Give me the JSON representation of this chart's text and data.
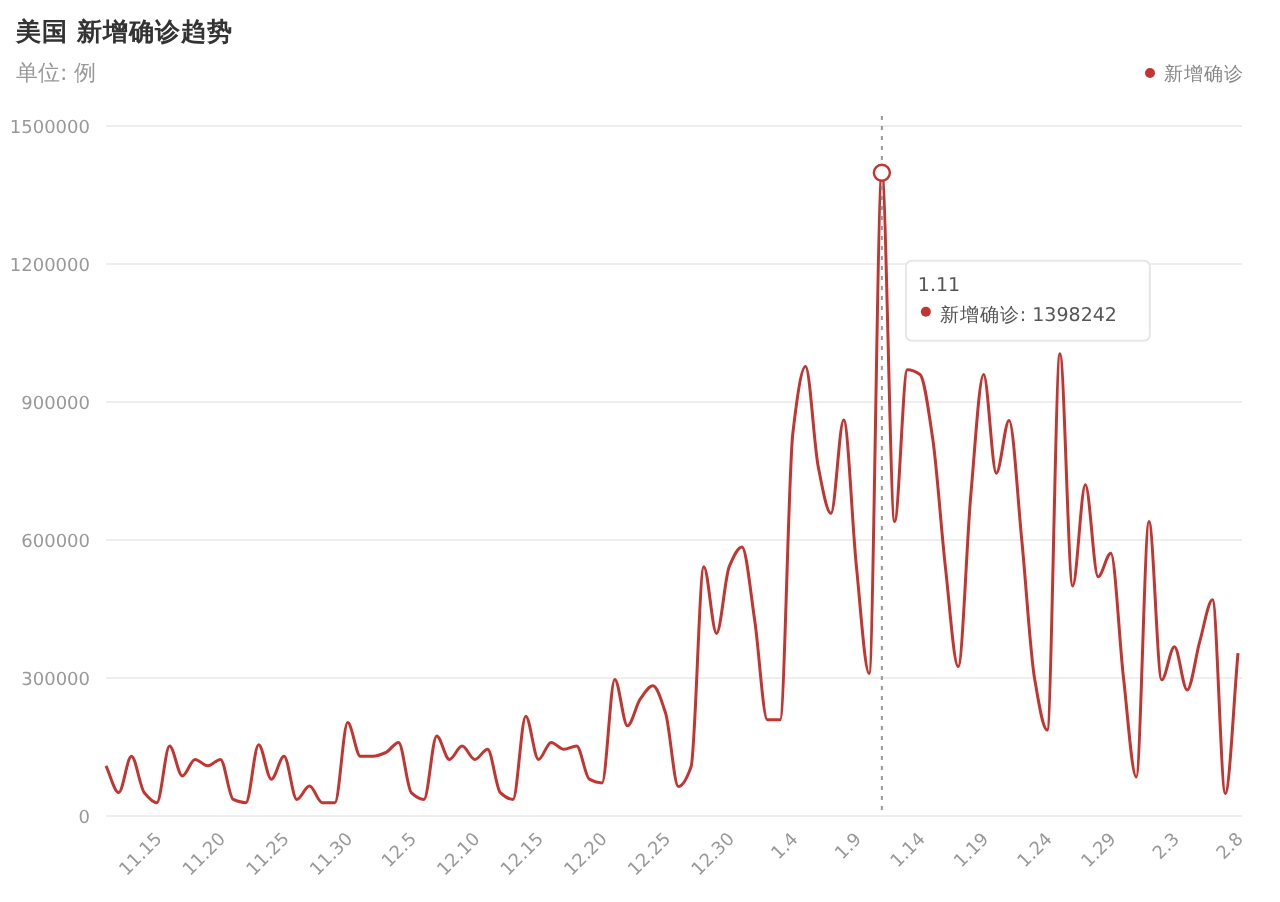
{
  "chart_data": {
    "type": "line",
    "title": "美国 新增确诊趋势",
    "subtitle": "单位: 例",
    "categories": [
      null,
      null,
      null,
      null,
      "11.15",
      null,
      null,
      null,
      null,
      "11.20",
      null,
      null,
      null,
      null,
      "11.25",
      null,
      null,
      null,
      null,
      "11.30",
      null,
      null,
      null,
      null,
      "12.5",
      null,
      null,
      null,
      null,
      "12.10",
      null,
      null,
      null,
      null,
      "12.15",
      null,
      null,
      null,
      null,
      "12.20",
      null,
      null,
      null,
      null,
      "12.25",
      null,
      null,
      null,
      null,
      "12.30",
      null,
      null,
      null,
      null,
      "1.4",
      null,
      null,
      null,
      null,
      "1.9",
      null,
      null,
      null,
      null,
      "1.14",
      null,
      null,
      null,
      null,
      "1.19",
      null,
      null,
      null,
      null,
      "1.24",
      null,
      null,
      null,
      null,
      "1.29",
      null,
      null,
      null,
      null,
      "2.3",
      null,
      null,
      null,
      null,
      "2.8"
    ],
    "series": [
      {
        "name": "新增确诊",
        "color": "#c23531",
        "values": [
          109000,
          51000,
          130000,
          51000,
          29000,
          152000,
          87000,
          123000,
          109000,
          123000,
          36000,
          29000,
          155000,
          80000,
          130000,
          36000,
          65000,
          29000,
          29000,
          203000,
          130000,
          130000,
          138000,
          160000,
          51000,
          36000,
          174000,
          123000,
          152000,
          123000,
          145000,
          51000,
          36000,
          217000,
          123000,
          160000,
          145000,
          152000,
          80000,
          72000,
          297000,
          196000,
          254000,
          283000,
          223000,
          64000,
          107000,
          542000,
          397000,
          542000,
          585000,
          426000,
          209000,
          209000,
          832000,
          977000,
          759000,
          658000,
          861000,
          542000,
          310000,
          1398242,
          640000,
          970000,
          960000,
          820000,
          540000,
          325000,
          700000,
          960000,
          745000,
          860000,
          600000,
          300000,
          187000,
          1005000,
          500000,
          720000,
          520000,
          571000,
          300000,
          85000,
          640000,
          296000,
          368000,
          274000,
          380000,
          470000,
          49000,
          354000
        ]
      }
    ],
    "ylim": [
      0,
      1500000
    ],
    "yticks": [
      0,
      300000,
      600000,
      900000,
      1200000,
      1500000
    ],
    "grid": "y",
    "legend": "top right",
    "marker": "none",
    "line_style": "solid",
    "annotations": [
      "1.11\n新增确诊: 1398242"
    ]
  }
}
